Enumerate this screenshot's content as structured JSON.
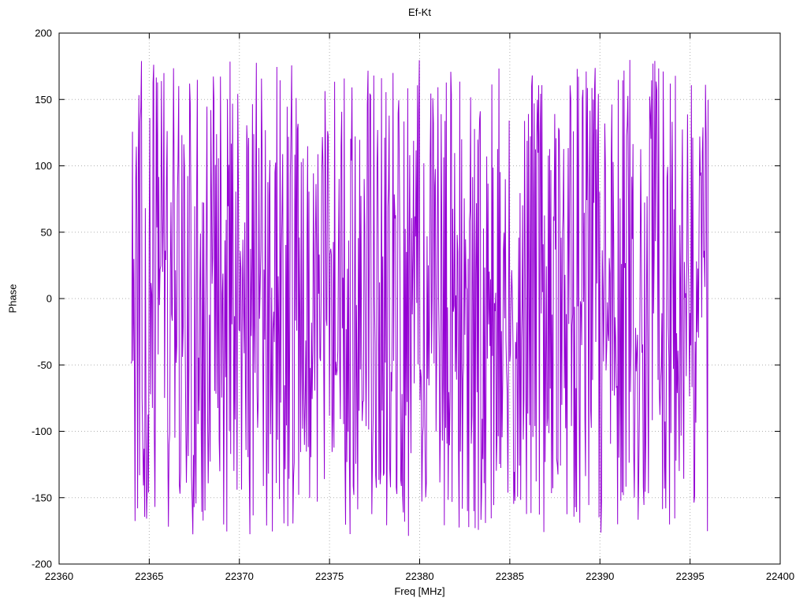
{
  "chart_data": {
    "type": "line",
    "title": "Ef-Kt",
    "xlabel": "Freq [MHz]",
    "ylabel": "Phase",
    "xlim": [
      22360,
      22400
    ],
    "ylim": [
      -200,
      200
    ],
    "x_ticks": [
      22360,
      22365,
      22370,
      22375,
      22380,
      22385,
      22390,
      22395,
      22400
    ],
    "y_ticks": [
      -200,
      -150,
      -100,
      -50,
      0,
      50,
      100,
      150,
      200
    ],
    "grid": "dotted",
    "legend": "none",
    "series": [
      {
        "name": "phase",
        "color": "#9400d3",
        "description": "wrapped phase noise, dense oscillation between -180 and +180 degrees",
        "x_start": 22364.0,
        "x_end": 22396.0,
        "n_points": 900,
        "y_min": -180,
        "y_max": 180,
        "distribution": "uniform-random",
        "seed": 1234
      }
    ],
    "colors": {
      "line": "#9400d3",
      "grid": "#b0b0b0",
      "border": "#000000",
      "background": "#ffffff"
    }
  }
}
